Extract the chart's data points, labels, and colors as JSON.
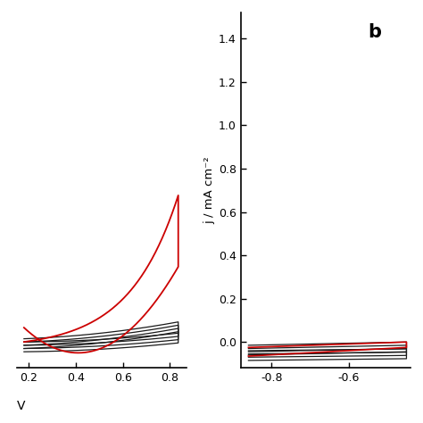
{
  "panel_a": {
    "xlim": [
      0.15,
      0.87
    ],
    "ylim": [
      -0.12,
      1.52
    ],
    "xticks": [
      0.2,
      0.4,
      0.6,
      0.8
    ],
    "xtick_labels": [
      "0.2",
      "0.4",
      "0.6",
      "0.8"
    ],
    "xlabel": "V",
    "red_color": "#cc0000",
    "black_color": "#1a1a1a"
  },
  "panel_b": {
    "label": "b",
    "xlim": [
      -0.88,
      -0.44
    ],
    "ylim": [
      -0.12,
      1.52
    ],
    "xticks": [
      -0.8,
      -0.6
    ],
    "xtick_labels": [
      "-0.8",
      "-0.6"
    ],
    "yticks": [
      0.0,
      0.2,
      0.4,
      0.6,
      0.8,
      1.0,
      1.2,
      1.4
    ],
    "ytick_labels": [
      "0.0",
      "0.2",
      "0.4",
      "0.6",
      "0.8",
      "1.0",
      "1.2",
      "1.4"
    ],
    "ylabel": "j / mA cm⁻²",
    "red_color": "#cc0000",
    "black_color": "#1a1a1a"
  },
  "background_color": "#ffffff",
  "figure_width": 4.74,
  "figure_height": 4.74,
  "dpi": 100
}
